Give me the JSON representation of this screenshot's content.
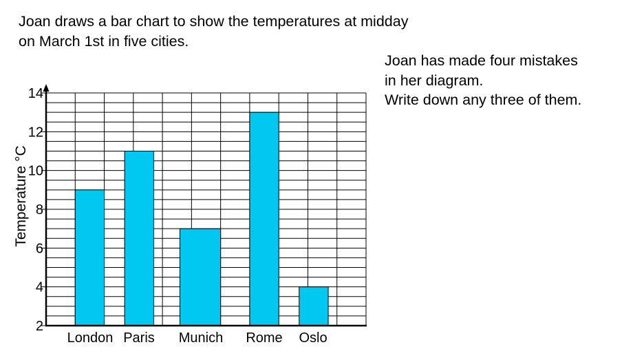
{
  "intro": {
    "line1": "Joan draws a bar chart to show the temperatures at midday",
    "line2": "on March 1st in five cities."
  },
  "question": {
    "line1": "Joan has made four mistakes",
    "line2": "in her diagram.",
    "line3": "Write down any three of them."
  },
  "colors": {
    "bar_fill": "#00c8f0",
    "grid": "#000000"
  },
  "chart_data": {
    "type": "bar",
    "title": "",
    "xlabel": "",
    "ylabel": "Temperature °C",
    "categories": [
      "London",
      "Paris",
      "Munich",
      "Rome",
      "Oslo"
    ],
    "values": [
      9,
      11,
      7,
      13,
      4
    ],
    "ylim": [
      2,
      14
    ],
    "yticks": [
      2,
      4,
      6,
      8,
      10,
      12,
      14
    ],
    "grid": true,
    "legend": "none"
  }
}
